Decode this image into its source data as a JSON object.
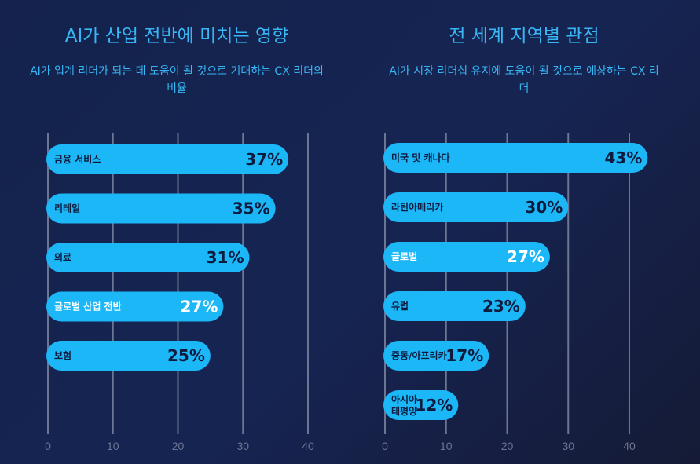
{
  "chart_data": [
    {
      "type": "bar",
      "orientation": "horizontal",
      "title": "AI가 산업 전반에 미치는 영향",
      "subtitle": "AI가 업계 리더가 되는 데 도움이 될 것으로 기대하는 CX 리더의 비율",
      "categories": [
        "금융 서비스",
        "리테일",
        "의료",
        "글로벌 산업 전반",
        "보험"
      ],
      "values": [
        37,
        35,
        31,
        27,
        25
      ],
      "value_labels": [
        "37%",
        "35%",
        "31%",
        "27%",
        "25%"
      ],
      "xlim": [
        0,
        40
      ],
      "ticks": [
        0,
        10,
        20,
        30,
        40
      ],
      "tick_labels": [
        "0",
        "10",
        "20",
        "30",
        "40"
      ],
      "grid": true,
      "colors": {
        "bar": "#1cb7f7",
        "label_dark": "#0e1b3f",
        "label_light": "#ffffff",
        "grid": "#6c7591",
        "title": "#38b6f5"
      },
      "light_label_categories": [
        "글로벌 산업 전반"
      ]
    },
    {
      "type": "bar",
      "orientation": "horizontal",
      "title": "전 세계 지역별 관점",
      "subtitle": "AI가 시장 리더십 유지에 도움이 될 것으로 예상하는 CX 리더",
      "categories": [
        "미국 및 캐나다",
        "라틴아메리카",
        "글로벌",
        "유럽",
        "중동/아프리카",
        "아시아 태평양"
      ],
      "values": [
        43,
        30,
        27,
        23,
        17,
        12
      ],
      "value_labels": [
        "43%",
        "30%",
        "27%",
        "23%",
        "17%",
        "12%"
      ],
      "xlim": [
        0,
        40
      ],
      "ticks": [
        0,
        10,
        20,
        30,
        40
      ],
      "tick_labels": [
        "0",
        "10",
        "20",
        "30",
        "40"
      ],
      "grid": true,
      "colors": {
        "bar": "#1cb7f7",
        "label_dark": "#0e1b3f",
        "label_light": "#ffffff",
        "grid": "#6c7591",
        "title": "#38b6f5"
      },
      "light_label_categories": [
        "글로벌"
      ]
    }
  ]
}
